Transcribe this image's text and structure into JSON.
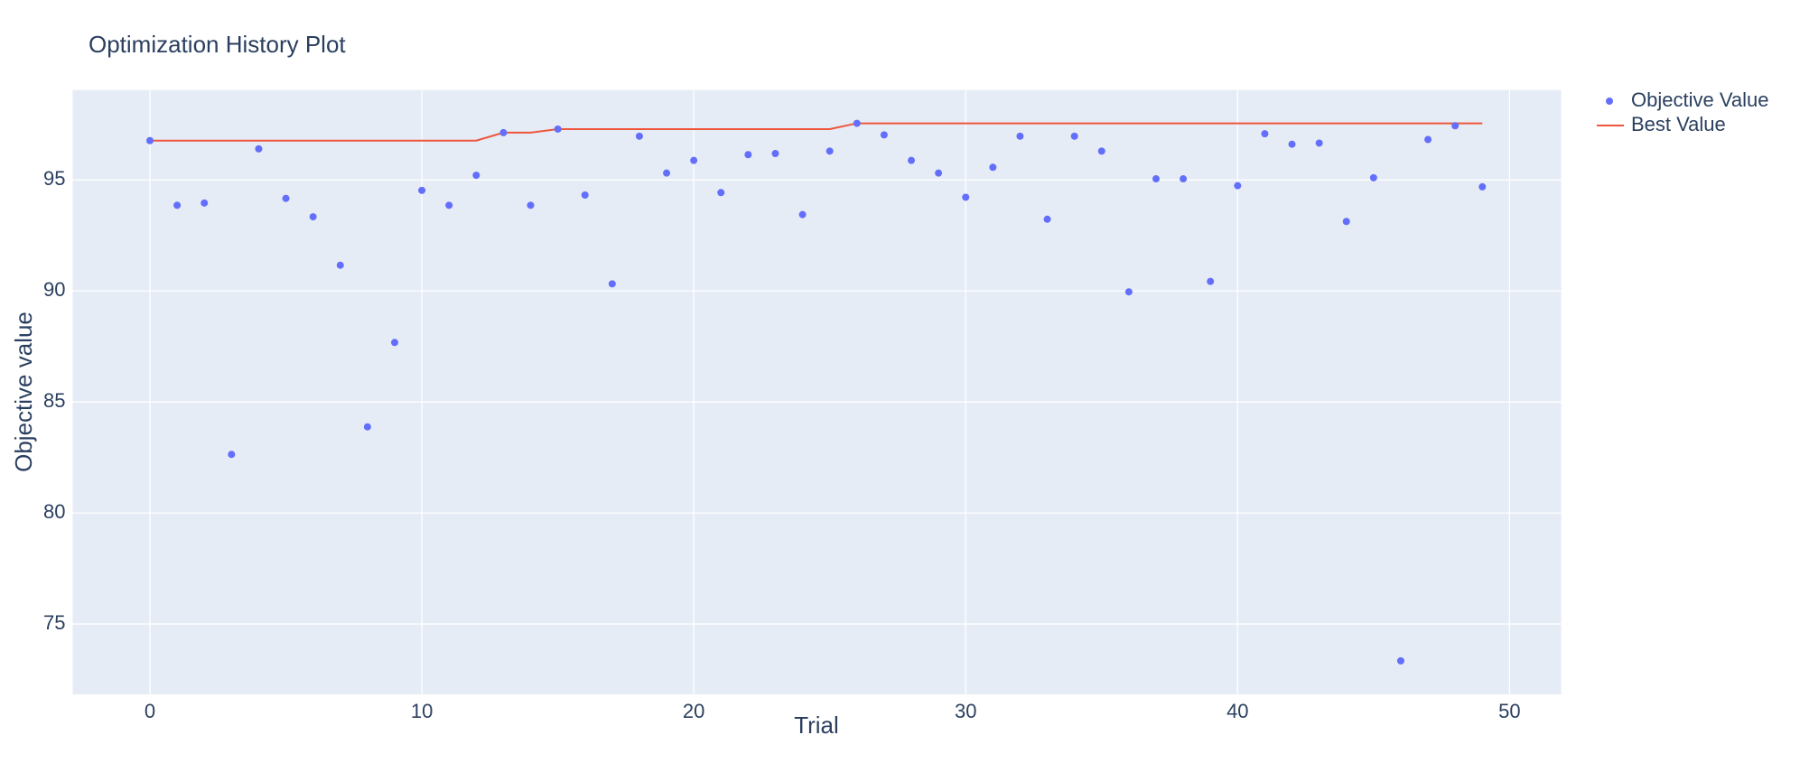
{
  "chart_data": {
    "type": "scatter",
    "title": "Optimization History Plot",
    "x_label": "Trial",
    "y_label": "Objective value",
    "x": [
      0,
      1,
      2,
      3,
      4,
      5,
      6,
      7,
      8,
      9,
      10,
      11,
      12,
      13,
      14,
      15,
      16,
      17,
      18,
      19,
      20,
      21,
      22,
      23,
      24,
      25,
      26,
      27,
      28,
      29,
      30,
      31,
      32,
      33,
      34,
      35,
      36,
      37,
      38,
      39,
      40,
      41,
      42,
      43,
      44,
      45,
      46,
      47,
      48,
      49
    ],
    "series": [
      {
        "name": "Objective Value",
        "color": "#636efa",
        "mode": "markers",
        "values": [
          96.77,
          93.86,
          93.96,
          82.64,
          96.4,
          94.17,
          93.34,
          91.16,
          83.88,
          87.68,
          94.53,
          93.86,
          95.21,
          97.13,
          93.86,
          97.29,
          94.32,
          90.32,
          96.97,
          95.31,
          95.88,
          94.43,
          96.14,
          96.19,
          93.44,
          96.3,
          97.55,
          97.03,
          95.88,
          95.31,
          94.22,
          95.57,
          96.97,
          93.23,
          96.97,
          96.3,
          89.96,
          95.05,
          95.05,
          90.43,
          94.74,
          97.08,
          96.61,
          96.66,
          93.13,
          95.1,
          73.34,
          96.82,
          97.44,
          94.69
        ]
      },
      {
        "name": "Best Value",
        "color": "#ef553b",
        "mode": "lines",
        "values": [
          96.77,
          96.77,
          96.77,
          96.77,
          96.77,
          96.77,
          96.77,
          96.77,
          96.77,
          96.77,
          96.77,
          96.77,
          96.77,
          97.13,
          97.13,
          97.29,
          97.29,
          97.29,
          97.29,
          97.29,
          97.29,
          97.29,
          97.29,
          97.29,
          97.29,
          97.29,
          97.55,
          97.55,
          97.55,
          97.55,
          97.55,
          97.55,
          97.55,
          97.55,
          97.55,
          97.55,
          97.55,
          97.55,
          97.55,
          97.55,
          97.55,
          97.55,
          97.55,
          97.55,
          97.55,
          97.55,
          97.55,
          97.55,
          97.55,
          97.55
        ]
      }
    ],
    "xlim": [
      -2.84,
      51.9
    ],
    "ylim": [
      71.83,
      99.05
    ],
    "xticks": [
      0,
      10,
      20,
      30,
      40,
      50
    ],
    "yticks": [
      75,
      80,
      85,
      90,
      95
    ],
    "grid": true,
    "legend": "outside-right"
  }
}
